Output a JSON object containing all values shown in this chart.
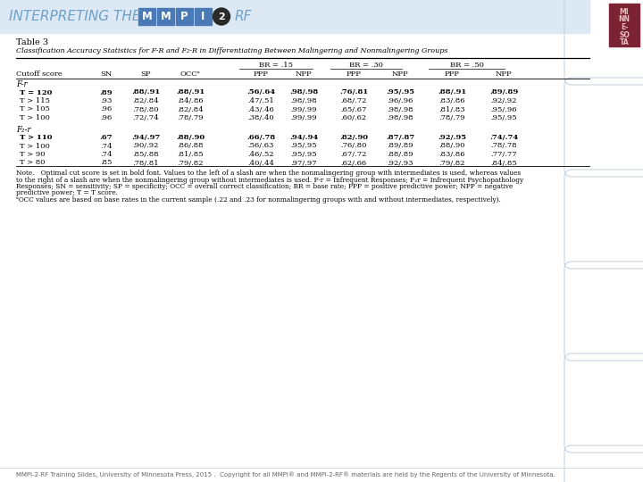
{
  "title_header": "INTERPRETING THE",
  "mmpi_letters": [
    "M",
    "M",
    "P",
    "I"
  ],
  "header_bg": "#4a7ab5",
  "header_text_color": "#6ea0c8",
  "table_title": "Table 3",
  "table_subtitle": "Classification Accuracy Statistics for F-R and F₂-R in Differentiating Between Malingering and Nonmalingering Groups",
  "col_headers": [
    "Cutoff score",
    "SN",
    "SP",
    "OCCᵃ",
    "PPP",
    "NPP",
    "PPP",
    "NPP",
    "PPP",
    "NPP"
  ],
  "br_headers": [
    "BR = .15",
    "BR = .30",
    "BR = .50"
  ],
  "section1_label": "F-r",
  "section1_rows": [
    [
      "T = 120",
      ".89",
      ".88/.91",
      ".88/.91",
      ".56/.64",
      ".98/.98",
      ".76/.81",
      ".95/.95",
      ".88/.91",
      ".89/.89"
    ],
    [
      "T > 115",
      ".93",
      ".82/.84",
      ".84/.86",
      ".47/.51",
      ".98/.98",
      ".68/.72",
      ".96/.96",
      ".83/.86",
      ".92/.92"
    ],
    [
      "T > 105",
      ".96",
      ".78/.80",
      ".82/.84",
      ".43/.46",
      ".99/.99",
      ".65/.67",
      ".98/.98",
      ".81/.83",
      ".95/.96"
    ],
    [
      "T > 100",
      ".96",
      ".72/.74",
      ".78/.79",
      ".38/.40",
      ".99/.99",
      ".60/.62",
      ".98/.98",
      ".78/.79",
      ".95/.95"
    ]
  ],
  "section1_bold_row": 0,
  "section2_label": "F₂-r",
  "section2_rows": [
    [
      "T > 110",
      ".67",
      ".94/.97",
      ".88/.90",
      ".66/.78",
      ".94/.94",
      ".82/.90",
      ".87/.87",
      ".92/.95",
      ".74/.74"
    ],
    [
      "T > 100",
      ".74",
      ".90/.92",
      ".86/.88",
      ".56/.63",
      ".95/.95",
      ".76/.80",
      ".89/.89",
      ".88/.90",
      ".78/.78"
    ],
    [
      "T > 90",
      ".74",
      ".85/.88",
      ".81/.85",
      ".46/.52",
      ".95/.95",
      ".67/.72",
      ".88/.89",
      ".83/.86",
      ".77/.77"
    ],
    [
      "T > 80",
      ".85",
      ".78/.81",
      ".79/.82",
      ".40/.44",
      ".97/.97",
      ".62/.66",
      ".92/.93",
      ".79/.82",
      ".84/.85"
    ]
  ],
  "section2_bold_row": 0,
  "note_line1": "Note.   Optimal cut score is set in bold font. Values to the left of a slash are when the nonmalingering group with intermediates is used, whereas values",
  "note_line2": "to the right of a slash are when the nonmalingering group without intermediates is used. F-r = Infrequent Responses; F₂r = Infrequent Psychopathology",
  "note_line3": "Responses; SN = sensitivity; SP = specificity; OCC = overall correct classification; BR = base rate; PPP = positive predictive power; NPP = negative",
  "note_line4": "predictive power; T = T score.",
  "note_line5": "ᵃOCC values are based on base rates in the current sample (.22 and .23 for nonmalingering groups with and without intermediates, respectively).",
  "footer_text": "MMPI-2-RF Training Slides, University of Minnesota Press, 2015 .  Copyright for all MMPI® and MMPI-2-RF® materials are held by the Regents of the University of Minnesota.",
  "bg_color": "#ffffff",
  "header_bar_color": "#dce9f5",
  "mn_red": "#7b2333",
  "curve_color": "#c8d4e0"
}
